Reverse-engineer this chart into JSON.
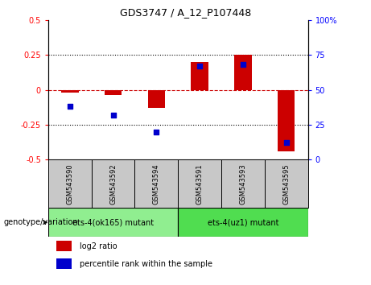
{
  "title": "GDS3747 / A_12_P107448",
  "samples": [
    "GSM543590",
    "GSM543592",
    "GSM543594",
    "GSM543591",
    "GSM543593",
    "GSM543595"
  ],
  "log2_ratio": [
    -0.02,
    -0.04,
    -0.13,
    0.2,
    0.25,
    -0.44
  ],
  "percentile_rank": [
    38,
    32,
    20,
    67,
    68,
    12
  ],
  "ylim_left": [
    -0.5,
    0.5
  ],
  "ylim_right": [
    0,
    100
  ],
  "yticks_left": [
    -0.5,
    -0.25,
    0,
    0.25,
    0.5
  ],
  "yticks_right": [
    0,
    25,
    50,
    75,
    100
  ],
  "bar_color": "#CC0000",
  "dot_color": "#0000CC",
  "zero_line_color": "#CC0000",
  "dotted_line_color": "#000000",
  "sample_box_color": "#C8C8C8",
  "group1_color": "#90EE90",
  "group2_color": "#50DD50",
  "group1_label": "ets-4(ok165) mutant",
  "group2_label": "ets-4(uz1) mutant",
  "genotype_label": "genotype/variation",
  "legend_log2": "log2 ratio",
  "legend_pct": "percentile rank within the sample"
}
